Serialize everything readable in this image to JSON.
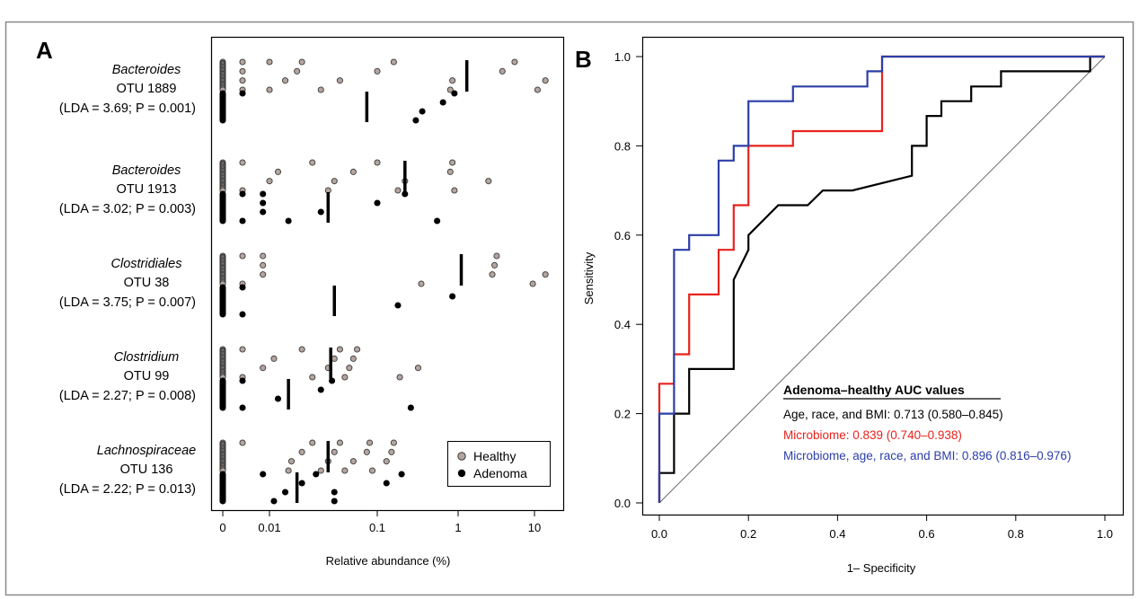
{
  "chart_data": [
    {
      "panel": "A",
      "type": "scatter",
      "xlabel": "Relative abundance (%)",
      "x_ticks": [
        "0",
        "0.01",
        "0.1",
        "1",
        "10"
      ],
      "x_scale": "log",
      "legend": {
        "placement": "bottom-right",
        "entries": [
          {
            "name": "Healthy",
            "color": "#b3a59f"
          },
          {
            "name": "Adenoma",
            "color": "#000000"
          }
        ]
      },
      "groups": [
        {
          "taxon": "Bacteroides",
          "otu": "OTU 1889",
          "stat": "(LDA = 3.69; P = 0.001)",
          "healthy": [
            0,
            0,
            0,
            0,
            0,
            0,
            0,
            0,
            0,
            0,
            0,
            0,
            0,
            0,
            0,
            0,
            0,
            0,
            0,
            0,
            0,
            0,
            0,
            0,
            0.004,
            0.004,
            0.004,
            0.004,
            0.01,
            0.01,
            0.014,
            0.018,
            0.02,
            0.03,
            0.045,
            0.1,
            0.16,
            0.8,
            0.85,
            3.8,
            5.5,
            11,
            14
          ],
          "adenoma": [
            0,
            0,
            0,
            0,
            0,
            0,
            0,
            0,
            0,
            0,
            0,
            0,
            0,
            0,
            0,
            0,
            0,
            0,
            0,
            0,
            0,
            0,
            0,
            0,
            0.004,
            0.3,
            0.36,
            0.65,
            0.9
          ],
          "median_healthy": 1.3,
          "median_adenoma": 0.08
        },
        {
          "taxon": "Bacteroides",
          "otu": "OTU 1913",
          "stat": "(LDA = 3.02; P = 0.003)",
          "healthy": [
            0,
            0,
            0,
            0,
            0,
            0,
            0,
            0,
            0,
            0,
            0,
            0,
            0,
            0,
            0,
            0,
            0,
            0,
            0,
            0,
            0,
            0,
            0,
            0,
            0.004,
            0.004,
            0.01,
            0.012,
            0.025,
            0.035,
            0.04,
            0.06,
            0.1,
            0.18,
            0.22,
            0.8,
            0.85,
            0.9,
            2.5
          ],
          "adenoma": [
            0,
            0,
            0,
            0,
            0,
            0,
            0,
            0,
            0,
            0,
            0,
            0,
            0,
            0,
            0,
            0,
            0,
            0,
            0,
            0,
            0,
            0,
            0,
            0,
            0,
            0,
            0.004,
            0.004,
            0.008,
            0.008,
            0.008,
            0.015,
            0.03,
            0.1,
            0.22,
            0.55
          ],
          "median_healthy": 0.22,
          "median_adenoma": 0.035
        },
        {
          "taxon": "Clostridiales",
          "otu": "OTU 38",
          "stat": "(LDA = 3.75; P = 0.007)",
          "healthy": [
            0,
            0,
            0,
            0,
            0,
            0,
            0,
            0,
            0,
            0,
            0,
            0,
            0,
            0,
            0,
            0,
            0,
            0,
            0,
            0,
            0,
            0,
            0,
            0,
            0.004,
            0.004,
            0.008,
            0.008,
            0.008,
            0.35,
            2.8,
            3.0,
            3.2,
            9.5,
            14
          ],
          "adenoma": [
            0,
            0,
            0,
            0,
            0,
            0,
            0,
            0,
            0,
            0,
            0,
            0,
            0,
            0,
            0,
            0,
            0,
            0,
            0,
            0,
            0,
            0,
            0,
            0,
            0.004,
            0.004,
            0.18,
            0.85
          ],
          "median_healthy": 1.1,
          "median_adenoma": 0.04
        },
        {
          "taxon": "Clostridium",
          "otu": "OTU 99",
          "stat": "(LDA = 2.27; P = 0.008)",
          "healthy": [
            0,
            0,
            0,
            0,
            0,
            0,
            0,
            0,
            0,
            0,
            0,
            0,
            0,
            0,
            0,
            0,
            0,
            0,
            0,
            0,
            0,
            0,
            0,
            0,
            0.004,
            0.004,
            0.008,
            0.011,
            0.02,
            0.025,
            0.035,
            0.04,
            0.045,
            0.05,
            0.055,
            0.06,
            0.065,
            0.19,
            0.32
          ],
          "adenoma": [
            0,
            0,
            0,
            0,
            0,
            0,
            0,
            0,
            0,
            0,
            0,
            0,
            0,
            0,
            0,
            0,
            0,
            0,
            0,
            0,
            0,
            0,
            0,
            0,
            0,
            0.004,
            0.004,
            0.012,
            0.03,
            0.038,
            0.26
          ],
          "median_healthy": 0.037,
          "median_adenoma": 0.015
        },
        {
          "taxon": "Lachnospiraceae",
          "otu": "OTU 136",
          "stat": "(LDA = 2.22; P = 0.013)",
          "healthy": [
            0,
            0,
            0,
            0,
            0,
            0,
            0,
            0,
            0,
            0,
            0,
            0,
            0,
            0,
            0,
            0,
            0,
            0,
            0,
            0,
            0,
            0,
            0,
            0,
            0.004,
            0.015,
            0.016,
            0.02,
            0.025,
            0.03,
            0.035,
            0.04,
            0.045,
            0.05,
            0.06,
            0.08,
            0.085,
            0.09,
            0.13,
            0.15,
            0.16
          ],
          "adenoma": [
            0,
            0,
            0,
            0,
            0,
            0,
            0,
            0,
            0,
            0,
            0,
            0,
            0,
            0,
            0,
            0,
            0,
            0,
            0,
            0,
            0,
            0,
            0,
            0,
            0.008,
            0.011,
            0.014,
            0.02,
            0.027,
            0.04,
            0.04,
            0.13,
            0.2
          ],
          "median_healthy": 0.035,
          "median_adenoma": 0.018
        }
      ]
    },
    {
      "panel": "B",
      "type": "line",
      "xlabel": "1– Specificity",
      "ylabel": "Sensitivity",
      "xlim": [
        0,
        1
      ],
      "ylim": [
        0,
        1
      ],
      "x_ticks": [
        "0.0",
        "0.2",
        "0.4",
        "0.6",
        "0.8",
        "1.0"
      ],
      "y_ticks": [
        "0.0",
        "0.2",
        "0.4",
        "0.6",
        "0.8",
        "1.0"
      ],
      "legend_title": "Adenoma–healthy AUC values",
      "series": [
        {
          "name": "Age, race, and BMI: 0.713 (0.580–0.845)",
          "color": "#000000",
          "points": [
            [
              0,
              0
            ],
            [
              0,
              0.067
            ],
            [
              0.033,
              0.067
            ],
            [
              0.033,
              0.2
            ],
            [
              0.067,
              0.2
            ],
            [
              0.067,
              0.3
            ],
            [
              0.167,
              0.3
            ],
            [
              0.167,
              0.5
            ],
            [
              0.2,
              0.567
            ],
            [
              0.2,
              0.6
            ],
            [
              0.233,
              0.633
            ],
            [
              0.267,
              0.667
            ],
            [
              0.333,
              0.667
            ],
            [
              0.367,
              0.7
            ],
            [
              0.433,
              0.7
            ],
            [
              0.567,
              0.733
            ],
            [
              0.567,
              0.8
            ],
            [
              0.6,
              0.8
            ],
            [
              0.6,
              0.867
            ],
            [
              0.633,
              0.867
            ],
            [
              0.633,
              0.9
            ],
            [
              0.7,
              0.9
            ],
            [
              0.7,
              0.933
            ],
            [
              0.767,
              0.933
            ],
            [
              0.767,
              0.967
            ],
            [
              0.967,
              0.967
            ],
            [
              0.967,
              1.0
            ],
            [
              1.0,
              1.0
            ]
          ]
        },
        {
          "name": "Microbiome: 0.839 (0.740–0.938)",
          "color": "#e8231d",
          "points": [
            [
              0,
              0
            ],
            [
              0,
              0.267
            ],
            [
              0.033,
              0.267
            ],
            [
              0.033,
              0.333
            ],
            [
              0.067,
              0.333
            ],
            [
              0.067,
              0.467
            ],
            [
              0.133,
              0.467
            ],
            [
              0.133,
              0.567
            ],
            [
              0.167,
              0.567
            ],
            [
              0.167,
              0.667
            ],
            [
              0.2,
              0.667
            ],
            [
              0.2,
              0.8
            ],
            [
              0.3,
              0.8
            ],
            [
              0.3,
              0.833
            ],
            [
              0.5,
              0.833
            ],
            [
              0.5,
              1.0
            ],
            [
              1.0,
              1.0
            ]
          ]
        },
        {
          "name": "Microbiome, age, race, and BMI: 0.896 (0.816–0.976)",
          "color": "#2c3ea8",
          "points": [
            [
              0,
              0
            ],
            [
              0,
              0.2
            ],
            [
              0.033,
              0.2
            ],
            [
              0.033,
              0.567
            ],
            [
              0.067,
              0.567
            ],
            [
              0.067,
              0.6
            ],
            [
              0.133,
              0.6
            ],
            [
              0.133,
              0.767
            ],
            [
              0.167,
              0.767
            ],
            [
              0.167,
              0.8
            ],
            [
              0.2,
              0.8
            ],
            [
              0.2,
              0.9
            ],
            [
              0.3,
              0.9
            ],
            [
              0.3,
              0.933
            ],
            [
              0.467,
              0.933
            ],
            [
              0.467,
              0.967
            ],
            [
              0.5,
              0.967
            ],
            [
              0.5,
              1.0
            ],
            [
              1.0,
              1.0
            ]
          ]
        }
      ]
    }
  ]
}
